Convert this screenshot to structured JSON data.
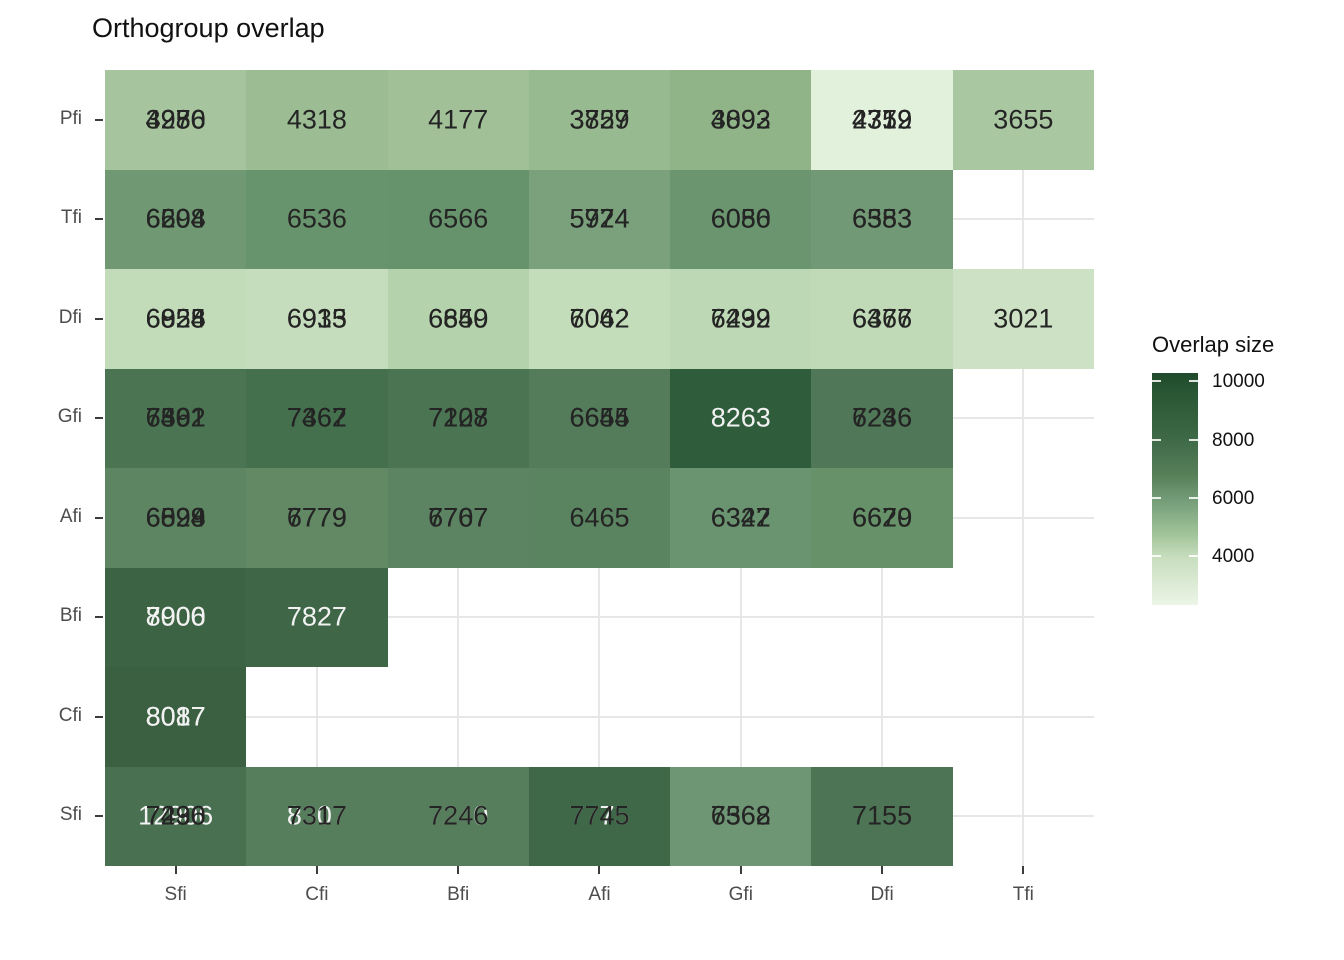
{
  "chart_data": {
    "type": "heatmap",
    "title": "Orthogroup overlap",
    "x_categories": [
      "Sfi",
      "Cfi",
      "Bfi",
      "Afi",
      "Gfi",
      "Dfi",
      "Tfi"
    ],
    "y_categories_top_to_bottom": [
      "Pfi",
      "Tfi",
      "Dfi",
      "Gfi",
      "Afi",
      "Bfi",
      "Cfi",
      "Sfi"
    ],
    "grid": true,
    "legend": {
      "title": "Overlap size",
      "position": "right",
      "ticks": [
        10000,
        8000,
        6000,
        4000
      ],
      "tick_colors": {
        "10000": "#265331",
        "8000": "#3f6a48",
        "6000": "#719a76",
        "4000": "#c6ddbd"
      },
      "gradient_top": "#1f4a2c",
      "gradient_bottom": "#ecf5e7"
    },
    "label_colors": {
      "dark": "#242424",
      "light": "#f2f2f2"
    },
    "rows": [
      {
        "y": "Pfi",
        "cells": [
          {
            "x": "Sfi",
            "bg": "#a6c49d",
            "labels": [
              {
                "t": "4250",
                "c": "dark"
              },
              {
                "t": "3986",
                "c": "dark"
              },
              {
                "t": "4276",
                "c": "dark"
              }
            ]
          },
          {
            "x": "Cfi",
            "bg": "#9cbd94",
            "labels": [
              {
                "t": "4318",
                "c": "dark"
              }
            ]
          },
          {
            "x": "Bfi",
            "bg": "#a1c098",
            "labels": [
              {
                "t": "4177",
                "c": "dark"
              }
            ]
          },
          {
            "x": "Afi",
            "bg": "#98ba90",
            "labels": [
              {
                "t": "3829",
                "c": "dark"
              },
              {
                "t": "3757",
                "c": "dark"
              }
            ]
          },
          {
            "x": "Gfi",
            "bg": "#90b388",
            "labels": [
              {
                "t": "4092",
                "c": "dark"
              },
              {
                "t": "3893",
                "c": "dark"
              }
            ]
          },
          {
            "x": "Dfi",
            "bg": "#e2f1dc",
            "labels": [
              {
                "t": "4379",
                "c": "dark"
              },
              {
                "t": "2352",
                "c": "dark"
              },
              {
                "t": "4719",
                "c": "dark"
              }
            ]
          },
          {
            "x": "Tfi",
            "bg": "#a9c7a1",
            "labels": [
              {
                "t": "3655",
                "c": "dark"
              }
            ]
          }
        ]
      },
      {
        "y": "Tfi",
        "cells": [
          {
            "x": "Sfi",
            "bg": "#6f9873",
            "labels": [
              {
                "t": "6604",
                "c": "dark"
              },
              {
                "t": "6598",
                "c": "dark"
              },
              {
                "t": "6204",
                "c": "dark"
              }
            ]
          },
          {
            "x": "Cfi",
            "bg": "#68946d",
            "labels": [
              {
                "t": "6536",
                "c": "dark"
              }
            ]
          },
          {
            "x": "Bfi",
            "bg": "#67936c",
            "labels": [
              {
                "t": "6566",
                "c": "dark"
              }
            ]
          },
          {
            "x": "Afi",
            "bg": "#7aa17c",
            "labels": [
              {
                "t": "5924",
                "c": "dark"
              },
              {
                "t": "5774",
                "c": "dark"
              }
            ]
          },
          {
            "x": "Gfi",
            "bg": "#6a956f",
            "labels": [
              {
                "t": "6080",
                "c": "dark"
              },
              {
                "t": "6056",
                "c": "dark"
              }
            ]
          },
          {
            "x": "Dfi",
            "bg": "#719975",
            "labels": [
              {
                "t": "6353",
                "c": "dark"
              },
              {
                "t": "6583",
                "c": "dark"
              }
            ]
          }
        ]
      },
      {
        "y": "Dfi",
        "cells": [
          {
            "x": "Sfi",
            "bg": "#c2dbb9",
            "labels": [
              {
                "t": "6925",
                "c": "dark"
              },
              {
                "t": "6828",
                "c": "dark"
              },
              {
                "t": "6054",
                "c": "dark"
              }
            ]
          },
          {
            "x": "Cfi",
            "bg": "#c5ddbc",
            "labels": [
              {
                "t": "6935",
                "c": "dark"
              },
              {
                "t": "6913",
                "c": "dark"
              }
            ]
          },
          {
            "x": "Bfi",
            "bg": "#b4d2ab",
            "labels": [
              {
                "t": "6650",
                "c": "dark"
              },
              {
                "t": "6849",
                "c": "dark"
              }
            ]
          },
          {
            "x": "Afi",
            "bg": "#c3dcba",
            "labels": [
              {
                "t": "6062",
                "c": "dark"
              },
              {
                "t": "7042",
                "c": "dark"
              }
            ]
          },
          {
            "x": "Gfi",
            "bg": "#bdd8b4",
            "labels": [
              {
                "t": "6299",
                "c": "dark"
              },
              {
                "t": "7432",
                "c": "dark"
              }
            ]
          },
          {
            "x": "Dfi",
            "bg": "#c0dab7",
            "labels": [
              {
                "t": "6466",
                "c": "dark"
              },
              {
                "t": "6377",
                "c": "dark"
              }
            ]
          },
          {
            "x": "Tfi",
            "bg": "#cde2c5",
            "labels": [
              {
                "t": "3021",
                "c": "dark"
              }
            ]
          }
        ]
      },
      {
        "y": "Gfi",
        "cells": [
          {
            "x": "Sfi",
            "bg": "#4b7453",
            "labels": [
              {
                "t": "7562",
                "c": "dark"
              },
              {
                "t": "7391",
                "c": "dark"
              },
              {
                "t": "6402",
                "c": "dark"
              }
            ]
          },
          {
            "x": "Cfi",
            "bg": "#45704e",
            "labels": [
              {
                "t": "7362",
                "c": "dark"
              },
              {
                "t": "7467",
                "c": "dark"
              }
            ]
          },
          {
            "x": "Bfi",
            "bg": "#4b7453",
            "labels": [
              {
                "t": "7208",
                "c": "dark"
              },
              {
                "t": "7127",
                "c": "dark"
              }
            ]
          },
          {
            "x": "Afi",
            "bg": "#547b5a",
            "labels": [
              {
                "t": "6655",
                "c": "dark"
              },
              {
                "t": "6644",
                "c": "dark"
              }
            ]
          },
          {
            "x": "Gfi",
            "bg": "#2f5d3b",
            "labels": [
              {
                "t": "8263",
                "c": "light"
              }
            ]
          },
          {
            "x": "Dfi",
            "bg": "#507757",
            "labels": [
              {
                "t": "6236",
                "c": "dark"
              },
              {
                "t": "7246",
                "c": "dark"
              }
            ]
          }
        ]
      },
      {
        "y": "Afi",
        "cells": [
          {
            "x": "Sfi",
            "bg": "#5d8562",
            "labels": [
              {
                "t": "6599",
                "c": "dark"
              },
              {
                "t": "6828",
                "c": "dark"
              },
              {
                "t": "6094",
                "c": "dark"
              }
            ]
          },
          {
            "x": "Cfi",
            "bg": "#628963",
            "labels": [
              {
                "t": "6779",
                "c": "dark"
              },
              {
                "t": "7779",
                "c": "dark"
              }
            ]
          },
          {
            "x": "Bfi",
            "bg": "#5c8462",
            "labels": [
              {
                "t": "6707",
                "c": "dark"
              },
              {
                "t": "7767",
                "c": "dark"
              }
            ]
          },
          {
            "x": "Afi",
            "bg": "#5a8360",
            "labels": [
              {
                "t": "6465",
                "c": "dark"
              }
            ]
          },
          {
            "x": "Gfi",
            "bg": "#6a9370",
            "labels": [
              {
                "t": "6322",
                "c": "dark"
              },
              {
                "t": "6347",
                "c": "dark"
              }
            ]
          },
          {
            "x": "Dfi",
            "bg": "#679168",
            "labels": [
              {
                "t": "6629",
                "c": "dark"
              },
              {
                "t": "6670",
                "c": "dark"
              }
            ]
          }
        ]
      },
      {
        "y": "Bfi",
        "cells": [
          {
            "x": "Sfi",
            "bg": "#3c6343",
            "labels": [
              {
                "t": "8000",
                "c": "light"
              },
              {
                "t": "7906",
                "c": "light"
              }
            ]
          },
          {
            "x": "Cfi",
            "bg": "#3f6647",
            "labels": [
              {
                "t": "7827",
                "c": "light"
              }
            ]
          }
        ]
      },
      {
        "y": "Cfi",
        "cells": [
          {
            "x": "Sfi",
            "bg": "#3a5f41",
            "labels": [
              {
                "t": "8087",
                "c": "light"
              },
              {
                "t": "8017",
                "c": "light"
              }
            ]
          }
        ]
      },
      {
        "y": "Sfi",
        "cells": [
          {
            "x": "Sfi",
            "bg": "#4a7052",
            "labels": [
              {
                "t": "12906",
                "c": "light"
              },
              {
                "t": "7290",
                "c": "dark"
              },
              {
                "t": "7436",
                "c": "dark"
              }
            ]
          },
          {
            "x": "Cfi",
            "bg": "#567d5c",
            "labels": [
              {
                "t": "8307",
                "c": "light"
              },
              {
                "t": "7317",
                "c": "dark"
              }
            ]
          },
          {
            "x": "Bfi",
            "bg": "#567d5c",
            "labels": [
              {
                "t": "7240",
                "c": "light"
              },
              {
                "t": "7246",
                "c": "dark"
              }
            ]
          },
          {
            "x": "Afi",
            "bg": "#3f6848",
            "labels": [
              {
                "t": "7775",
                "c": "light"
              },
              {
                "t": "7745",
                "c": "dark"
              }
            ]
          },
          {
            "x": "Gfi",
            "bg": "#6f9674",
            "labels": [
              {
                "t": "6568",
                "c": "dark"
              },
              {
                "t": "7362",
                "c": "dark"
              }
            ]
          },
          {
            "x": "Dfi",
            "bg": "#4d7454",
            "labels": [
              {
                "t": "7155",
                "c": "dark"
              }
            ]
          }
        ]
      }
    ]
  }
}
